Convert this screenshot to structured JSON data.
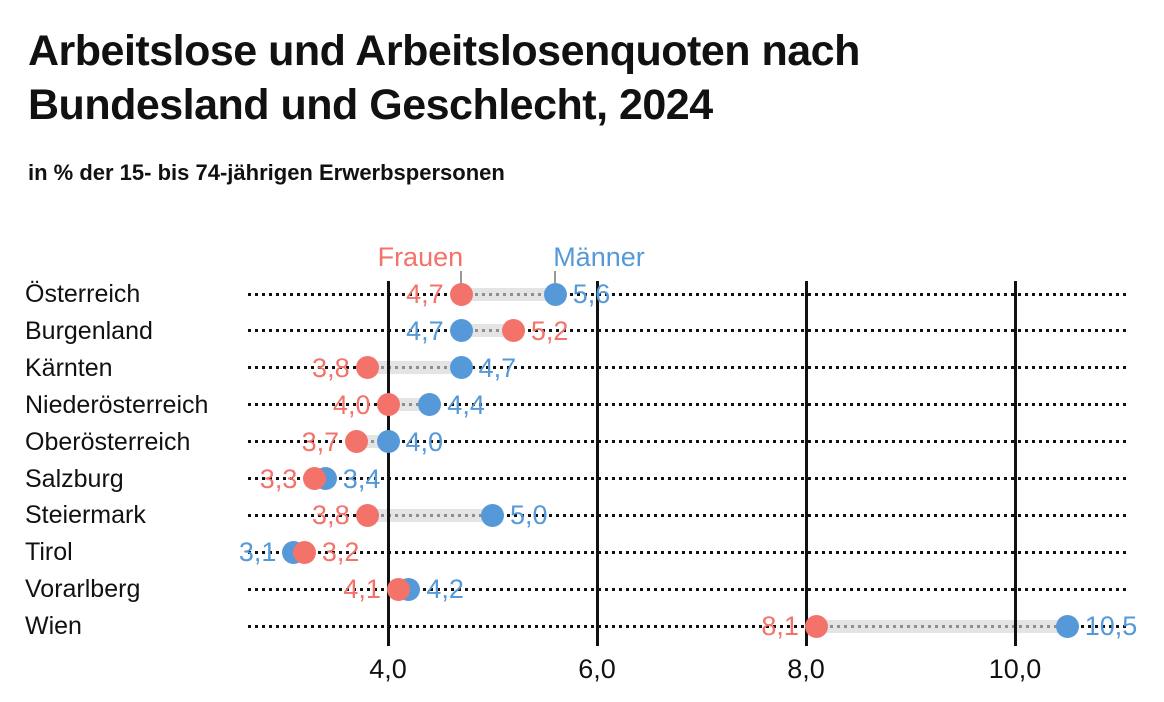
{
  "header": {
    "title_lines": [
      "Arbeitslose und Arbeitslosenquoten nach",
      "Bundesland und Geschlecht, 2024"
    ],
    "subtitle": "in % der 15- bis 74-jährigen Erwerbspersonen"
  },
  "colors": {
    "frauen": "#F3736B",
    "maenner": "#5699D8",
    "band": "#E4E4E4",
    "grid": "#111111",
    "text": "#111111"
  },
  "chart_data": {
    "type": "dumbbell-dot",
    "title": "Arbeitslose und Arbeitslosenquoten nach Bundesland und Geschlecht, 2024",
    "subtitle": "in % der 15- bis 74-jährigen Erwerbspersonen",
    "unit": "percent",
    "decimal_separator": ",",
    "categories": [
      "Österreich",
      "Burgenland",
      "Kärnten",
      "Niederösterreich",
      "Oberösterreich",
      "Salzburg",
      "Steiermark",
      "Tirol",
      "Vorarlberg",
      "Wien"
    ],
    "series": [
      {
        "name": "Frauen",
        "color": "#F3736B",
        "values": [
          4.7,
          5.2,
          3.8,
          4.0,
          3.7,
          3.3,
          3.8,
          3.2,
          4.1,
          8.1
        ]
      },
      {
        "name": "Männer",
        "color": "#5699D8",
        "values": [
          5.6,
          4.7,
          4.7,
          4.4,
          4.0,
          3.4,
          5.0,
          3.1,
          4.2,
          10.5
        ]
      }
    ],
    "x_ticks": [
      4.0,
      6.0,
      8.0,
      10.0
    ],
    "x_tick_labels": [
      "4,0",
      "6,0",
      "8,0",
      "10,0"
    ],
    "xlim": [
      2.65,
      11.1
    ],
    "grid": "vertical-solid-plus-dotted-row-leaders",
    "legend_position": "top-above-first-row"
  }
}
